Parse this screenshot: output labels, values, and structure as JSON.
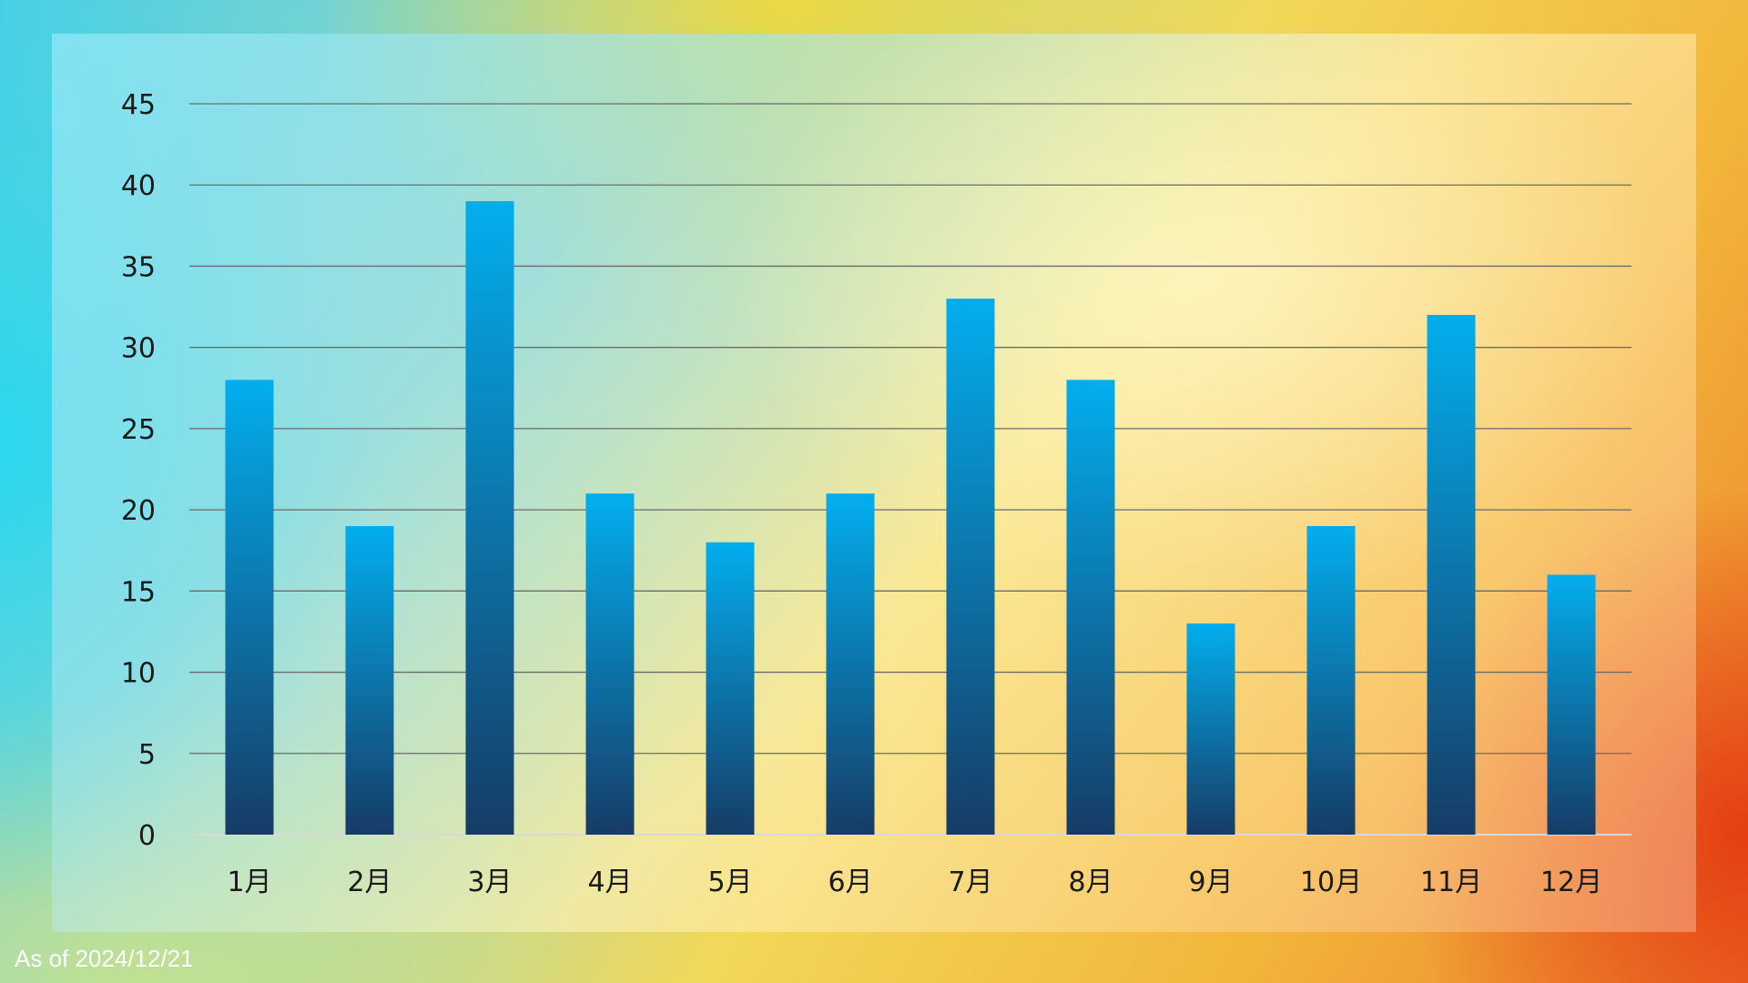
{
  "chart_data": {
    "type": "bar",
    "title": "",
    "xlabel": "",
    "ylabel": "",
    "categories": [
      "1月",
      "2月",
      "3月",
      "4月",
      "5月",
      "6月",
      "7月",
      "8月",
      "9月",
      "10月",
      "11月",
      "12月"
    ],
    "values": [
      28,
      19,
      39,
      21,
      18,
      21,
      33,
      28,
      13,
      19,
      32,
      16
    ],
    "ylim": [
      0,
      45
    ],
    "yticks": [
      0,
      5,
      10,
      15,
      20,
      25,
      30,
      35,
      40,
      45
    ],
    "grid": true,
    "legend": "none",
    "bar_gradient": {
      "top": "#03aeee",
      "bottom": "#163c66"
    }
  },
  "footer": {
    "as_of": "As of 2024/12/21"
  }
}
